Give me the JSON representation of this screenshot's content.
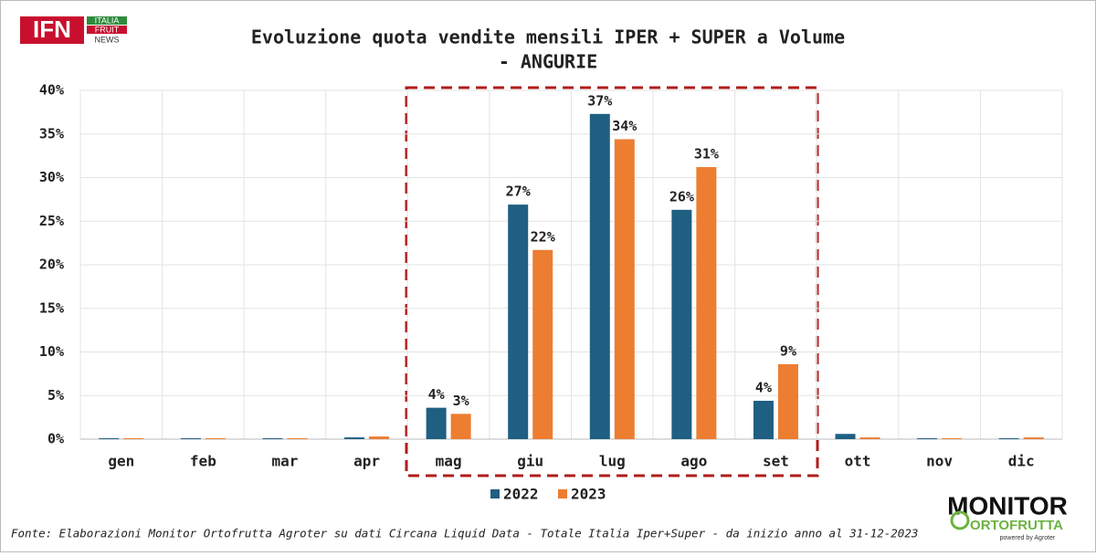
{
  "chart_data": {
    "type": "bar",
    "title": "Evoluzione quota vendite mensili IPER + SUPER a Volume",
    "subtitle": "- ANGURIE",
    "categories": [
      "gen",
      "feb",
      "mar",
      "apr",
      "mag",
      "giu",
      "lug",
      "ago",
      "set",
      "ott",
      "nov",
      "dic"
    ],
    "series": [
      {
        "name": "2022",
        "color": "#1f5f82",
        "values": [
          0.1,
          0.1,
          0.1,
          0.2,
          3.6,
          26.9,
          37.3,
          26.3,
          4.4,
          0.6,
          0.1,
          0.1
        ],
        "value_labels": [
          null,
          null,
          null,
          null,
          "4%",
          "27%",
          "37%",
          "26%",
          "4%",
          null,
          null,
          null
        ]
      },
      {
        "name": "2023",
        "color": "#ed7d31",
        "values": [
          0.1,
          0.1,
          0.1,
          0.3,
          2.9,
          21.7,
          34.4,
          31.2,
          8.6,
          0.2,
          0.1,
          0.2
        ],
        "value_labels": [
          null,
          null,
          null,
          null,
          "3%",
          "22%",
          "34%",
          "31%",
          "9%",
          null,
          null,
          null
        ]
      }
    ],
    "ylim": [
      0,
      40
    ],
    "yticks": [
      {
        "value": 0,
        "label": "0%"
      },
      {
        "value": 5,
        "label": "5%"
      },
      {
        "value": 10,
        "label": "10%"
      },
      {
        "value": 15,
        "label": "15%"
      },
      {
        "value": 20,
        "label": "20%"
      },
      {
        "value": 25,
        "label": "25%"
      },
      {
        "value": 30,
        "label": "30%"
      },
      {
        "value": 35,
        "label": "35%"
      },
      {
        "value": 40,
        "label": "40%"
      }
    ],
    "grid": true,
    "legend": "bottom",
    "source": "Fonte: Elaborazioni Monitor Ortofrutta Agroter su dati Circana Liquid Data - Totale Italia Iper+Super -  da inizio anno al 31-12-2023"
  },
  "logos": {
    "ifn": {
      "mark": "IFN",
      "lines": [
        "ITALIA",
        "FRUIT",
        "NEWS"
      ]
    },
    "monitor": {
      "mark": "MONITOR",
      "sub": "ORTOFRUTTA",
      "tag": "powered by Agroter"
    }
  }
}
